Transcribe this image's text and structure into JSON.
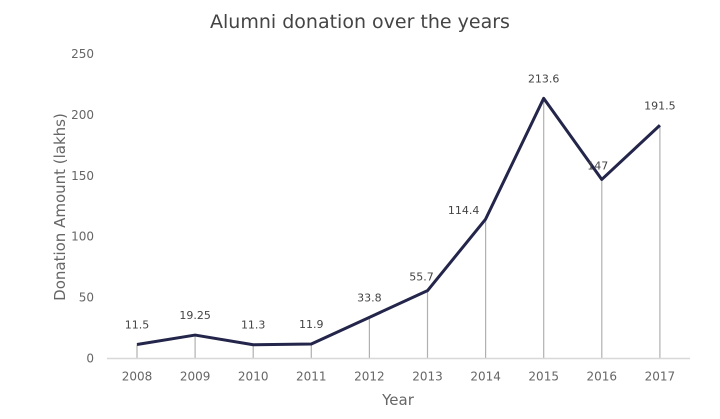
{
  "chart_data": {
    "type": "line",
    "title": "Alumni donation over the years",
    "xlabel": "Year",
    "ylabel": "Donation Amount (lakhs)",
    "categories": [
      "2008",
      "2009",
      "2010",
      "2011",
      "2012",
      "2013",
      "2014",
      "2015",
      "2016",
      "2017"
    ],
    "values": [
      11.5,
      19.25,
      11.3,
      11.9,
      33.8,
      55.7,
      114.4,
      213.6,
      147,
      191.5
    ],
    "data_labels": [
      "11.5",
      "19.25",
      "11.3",
      "11.9",
      "33.8",
      "55.7",
      "114.4",
      "213.6",
      "147",
      "191.5"
    ],
    "ylim": [
      0,
      250
    ],
    "yticks": [
      "0",
      "50",
      "100",
      "150",
      "200",
      "250"
    ],
    "grid": false,
    "drop_lines": true,
    "colors": {
      "line": "#23254a",
      "drop_line": "#b0b0b0",
      "axis": "#d8d8d8"
    }
  }
}
